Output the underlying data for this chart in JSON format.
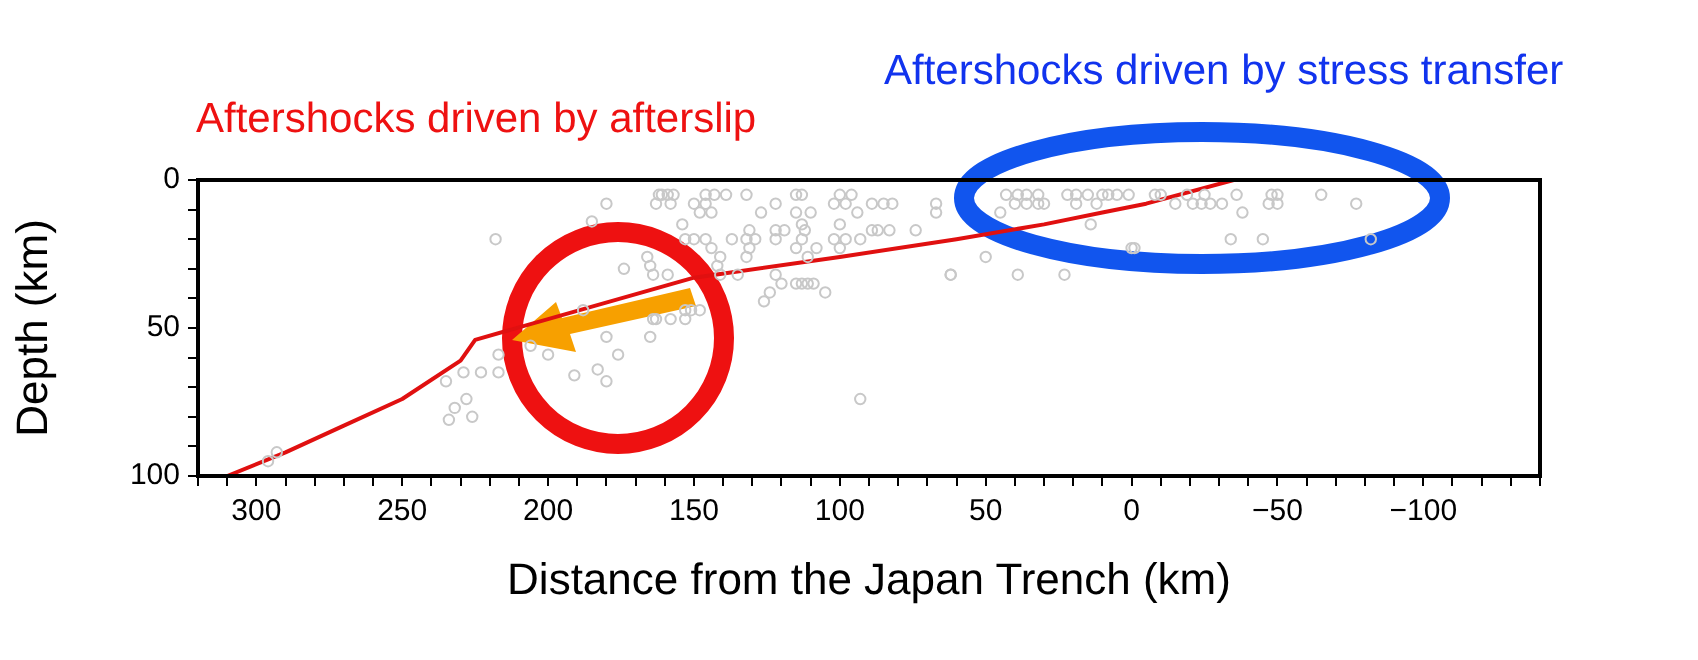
{
  "chart_data": {
    "type": "scatter",
    "xlabel": "Distance from the Japan Trench (km)",
    "ylabel": "Depth (km)",
    "annotations": [
      "Aftershocks driven by afterslip",
      "Aftershocks driven by stress transfer"
    ],
    "xlim": [
      320,
      -140
    ],
    "ylim": [
      100,
      0
    ],
    "xticks": [
      {
        "value": 320,
        "label": null
      },
      {
        "value": 310,
        "label": null
      },
      300,
      {
        "value": 290,
        "label": null
      },
      {
        "value": 280,
        "label": null
      },
      {
        "value": 270,
        "label": null
      },
      {
        "value": 260,
        "label": null
      },
      250,
      {
        "value": 240,
        "label": null
      },
      {
        "value": 230,
        "label": null
      },
      {
        "value": 220,
        "label": null
      },
      {
        "value": 210,
        "label": null
      },
      200,
      {
        "value": 190,
        "label": null
      },
      {
        "value": 180,
        "label": null
      },
      {
        "value": 170,
        "label": null
      },
      {
        "value": 160,
        "label": null
      },
      150,
      {
        "value": 140,
        "label": null
      },
      {
        "value": 130,
        "label": null
      },
      {
        "value": 120,
        "label": null
      },
      {
        "value": 110,
        "label": null
      },
      100,
      {
        "value": 90,
        "label": null
      },
      {
        "value": 80,
        "label": null
      },
      {
        "value": 70,
        "label": null
      },
      {
        "value": 60,
        "label": null
      },
      50,
      {
        "value": 40,
        "label": null
      },
      {
        "value": 30,
        "label": null
      },
      {
        "value": 20,
        "label": null
      },
      {
        "value": 10,
        "label": null
      },
      0,
      {
        "value": -10,
        "label": null
      },
      {
        "value": -20,
        "label": null
      },
      {
        "value": -30,
        "label": null
      },
      {
        "value": -40,
        "label": null
      },
      {
        "value": -50,
        "label": "−50"
      },
      {
        "value": -60,
        "label": null
      },
      {
        "value": -70,
        "label": null
      },
      {
        "value": -80,
        "label": null
      },
      {
        "value": -90,
        "label": null
      },
      {
        "value": -100,
        "label": "−100"
      },
      {
        "value": -110,
        "label": null
      },
      {
        "value": -120,
        "label": null
      },
      {
        "value": -130,
        "label": null
      },
      {
        "value": -140,
        "label": null
      }
    ],
    "yticks": [
      0,
      {
        "value": 10,
        "label": null
      },
      {
        "value": 20,
        "label": null
      },
      {
        "value": 30,
        "label": null
      },
      {
        "value": 40,
        "label": null
      },
      50,
      {
        "value": 60,
        "label": null
      },
      {
        "value": 70,
        "label": null
      },
      {
        "value": 80,
        "label": null
      },
      {
        "value": 90,
        "label": null
      },
      100
    ],
    "grid": false,
    "legend": false,
    "series": [
      {
        "type": "scatter",
        "marker": "circle",
        "color": "#c8c8c8",
        "x": [
          296,
          293,
          218,
          235,
          229,
          223,
          232,
          234,
          226,
          228,
          217,
          217,
          206,
          200,
          191,
          183,
          180,
          180,
          185,
          174,
          162,
          163,
          176,
          180,
          165,
          188,
          161,
          159,
          157,
          146,
          143,
          139,
          132,
          115,
          113,
          100,
          96,
          163,
          158,
          150,
          146,
          122,
          102,
          98,
          89,
          85,
          82,
          67,
          148,
          144,
          127,
          115,
          110,
          94,
          67,
          154,
          113,
          100,
          131,
          122,
          119,
          112,
          89,
          87,
          83,
          74,
          153,
          150,
          146,
          137,
          132,
          129,
          122,
          113,
          102,
          98,
          93,
          144,
          131,
          115,
          108,
          100,
          166,
          141,
          132,
          111,
          165,
          142,
          164,
          159,
          141,
          135,
          122,
          62,
          120,
          115,
          113,
          111,
          109,
          124,
          105,
          126,
          153,
          151,
          148,
          164,
          158,
          153,
          93,
          50,
          62,
          39,
          23,
          43,
          39,
          36,
          32,
          22,
          19,
          15,
          10,
          8,
          5,
          40,
          36,
          32,
          30,
          19,
          12,
          45,
          14,
          -1,
          1,
          -8,
          -10,
          -19,
          -25,
          -36,
          -48,
          -50,
          -65,
          -15,
          -21,
          -24,
          -27,
          -31,
          -47,
          -50,
          -77,
          -38,
          -34,
          -45,
          -82,
          0
        ],
        "values": [
          95,
          92,
          20,
          68,
          65,
          65,
          77,
          81,
          80,
          74,
          59,
          65,
          56,
          59,
          66,
          64,
          68,
          8,
          14,
          30,
          5,
          47,
          59,
          53,
          53,
          44,
          5,
          5,
          5,
          5,
          5,
          5,
          5,
          5,
          5,
          5,
          5,
          8,
          8,
          8,
          8,
          8,
          8,
          8,
          8,
          8,
          8,
          8,
          11,
          11,
          11,
          11,
          11,
          11,
          11,
          15,
          15,
          15,
          17,
          17,
          17,
          17,
          17,
          17,
          17,
          17,
          20,
          20,
          20,
          20,
          20,
          20,
          20,
          20,
          20,
          20,
          20,
          23,
          23,
          23,
          23,
          23,
          26,
          26,
          26,
          26,
          29,
          29,
          32,
          32,
          32,
          32,
          32,
          32,
          35,
          35,
          35,
          35,
          35,
          38,
          38,
          41,
          44,
          44,
          44,
          47,
          47,
          47,
          74,
          26,
          32,
          32,
          32,
          5,
          5,
          5,
          5,
          5,
          5,
          5,
          5,
          5,
          5,
          8,
          8,
          8,
          8,
          8,
          8,
          11,
          15,
          23,
          5,
          5,
          5,
          5,
          5,
          5,
          5,
          5,
          5,
          8,
          8,
          8,
          8,
          8,
          8,
          8,
          8,
          11,
          20,
          20,
          20,
          23
        ]
      },
      {
        "type": "line",
        "marker": "none",
        "color": "#e01010",
        "x": [
          310,
          290,
          270,
          250,
          230,
          225,
          150,
          100,
          60,
          30,
          10,
          -5,
          -35
        ],
        "values": [
          100,
          92,
          83,
          74,
          61,
          54,
          33,
          26,
          20,
          15,
          11,
          8,
          0
        ]
      }
    ]
  }
}
